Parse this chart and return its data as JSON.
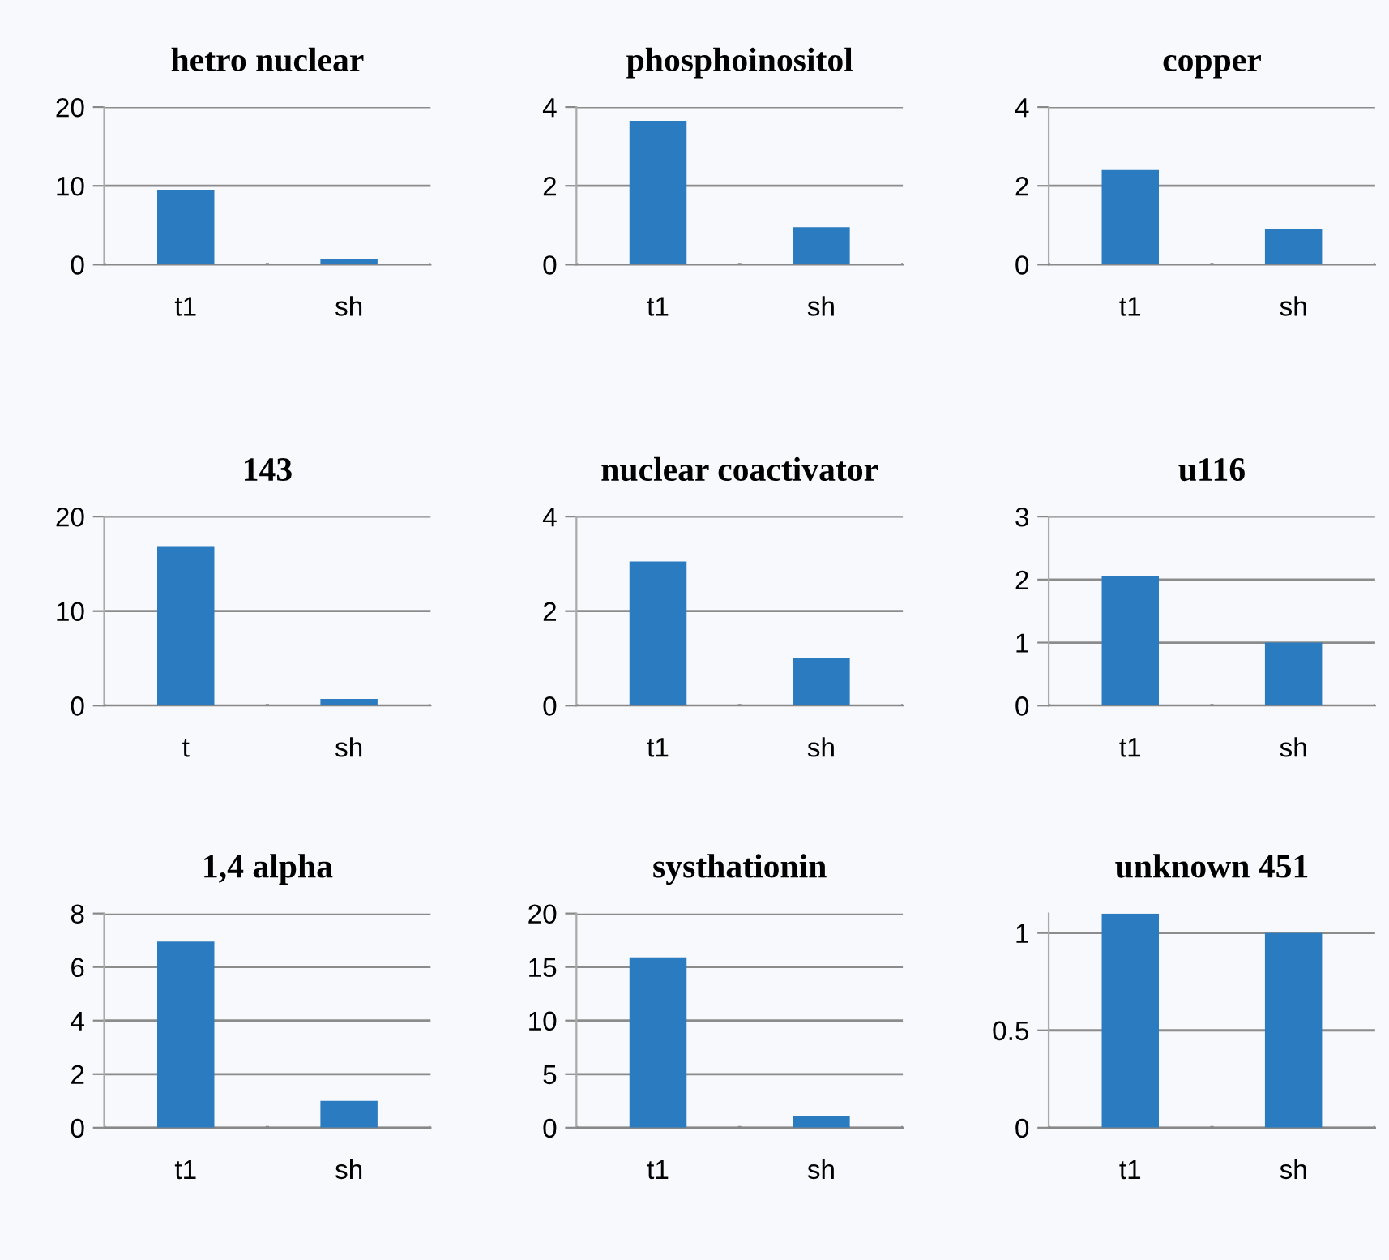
{
  "chart_data": [
    {
      "type": "bar",
      "title": "hetro nuclear",
      "categories": [
        "t1",
        "sh"
      ],
      "values": [
        9.5,
        0.7
      ],
      "color": "#2a7bbf",
      "ylim": [
        0,
        20
      ],
      "yticks": [
        0,
        10,
        20
      ],
      "grid": "y"
    },
    {
      "type": "bar",
      "title": "phosphoinositol",
      "categories": [
        "t1",
        "sh"
      ],
      "values": [
        3.65,
        0.95
      ],
      "color": "#2a7bbf",
      "ylim": [
        0,
        4
      ],
      "yticks": [
        0,
        2,
        4
      ],
      "grid": "y"
    },
    {
      "type": "bar",
      "title": "copper",
      "categories": [
        "t1",
        "sh"
      ],
      "values": [
        2.4,
        0.9
      ],
      "color": "#2a7bbf",
      "ylim": [
        0,
        4
      ],
      "yticks": [
        0,
        2,
        4
      ],
      "grid": "y"
    },
    {
      "type": "bar",
      "title": "143",
      "categories": [
        "t",
        "sh"
      ],
      "values": [
        16.8,
        0.7
      ],
      "color": "#2a7bbf",
      "ylim": [
        0,
        20
      ],
      "yticks": [
        0,
        10,
        20
      ],
      "grid": "y"
    },
    {
      "type": "bar",
      "title": "nuclear coactivator",
      "categories": [
        "t1",
        "sh"
      ],
      "values": [
        3.05,
        1.0
      ],
      "color": "#2a7bbf",
      "ylim": [
        0,
        4
      ],
      "yticks": [
        0,
        2,
        4
      ],
      "grid": "y"
    },
    {
      "type": "bar",
      "title": "u116",
      "categories": [
        "t1",
        "sh"
      ],
      "values": [
        2.05,
        1.0
      ],
      "color": "#2a7bbf",
      "ylim": [
        0,
        3
      ],
      "yticks": [
        0,
        1,
        2,
        3
      ],
      "grid": "y"
    },
    {
      "type": "bar",
      "title": "1,4 alpha",
      "categories": [
        "t1",
        "sh"
      ],
      "values": [
        6.95,
        1.0
      ],
      "color": "#2a7bbf",
      "ylim": [
        0,
        8
      ],
      "yticks": [
        0,
        2,
        4,
        6,
        8
      ],
      "grid": "y"
    },
    {
      "type": "bar",
      "title": "systhationin",
      "categories": [
        "t1",
        "sh"
      ],
      "values": [
        15.9,
        1.1
      ],
      "color": "#2a7bbf",
      "ylim": [
        0,
        20
      ],
      "yticks": [
        0,
        5,
        10,
        15,
        20
      ],
      "grid": "y"
    },
    {
      "type": "bar",
      "title": "unknown 451",
      "categories": [
        "t1",
        "sh"
      ],
      "values": [
        1.1,
        1.0
      ],
      "color": "#2a7bbf",
      "ylim": [
        0,
        1.1
      ],
      "yticks": [
        0,
        0.5,
        1
      ],
      "grid": "y"
    }
  ]
}
